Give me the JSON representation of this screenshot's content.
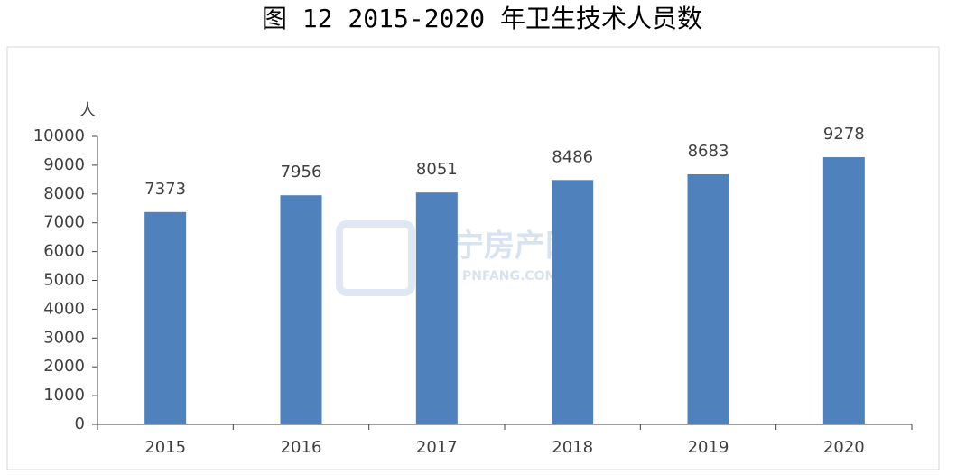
{
  "chart_data": {
    "type": "bar",
    "title": "图 12    2015-2020 年卫生技术人员数",
    "y_label": "人",
    "categories": [
      "2015",
      "2016",
      "2017",
      "2018",
      "2019",
      "2020"
    ],
    "values": [
      7373,
      7956,
      8051,
      8486,
      8683,
      9278
    ],
    "color": "#4f81bd",
    "ylim": [
      0,
      10000
    ],
    "yticks": [
      0,
      1000,
      2000,
      3000,
      4000,
      5000,
      6000,
      7000,
      8000,
      9000,
      10000
    ],
    "grid": false,
    "watermark": [
      "普宁房产网",
      "PNFANG.COM"
    ]
  }
}
